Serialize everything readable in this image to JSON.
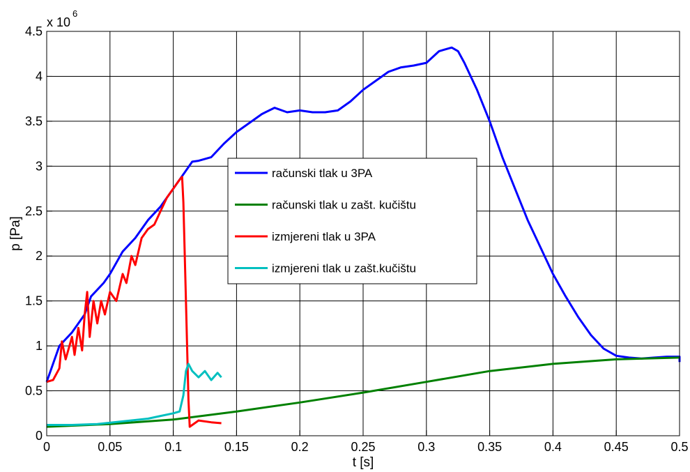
{
  "chart_data": {
    "type": "line",
    "xlabel": "t [s]",
    "ylabel": "p [Pa]",
    "y_exponent_base": "x 10",
    "y_exponent_power": "6",
    "xlim": [
      0,
      0.5
    ],
    "ylim": [
      0,
      4.5
    ],
    "x_ticks": [
      "0",
      "0.05",
      "0.1",
      "0.15",
      "0.2",
      "0.25",
      "0.3",
      "0.35",
      "0.4",
      "0.45",
      "0.5"
    ],
    "y_ticks": [
      "0",
      "0.5",
      "1",
      "1.5",
      "2",
      "2.5",
      "3",
      "3.5",
      "4",
      "4.5"
    ],
    "grid": true,
    "legend_position": "center",
    "series": [
      {
        "name": "računski tlak u 3PA",
        "color": "#0000ff",
        "points": [
          [
            0,
            0.6
          ],
          [
            0.005,
            0.8
          ],
          [
            0.01,
            1.0
          ],
          [
            0.02,
            1.15
          ],
          [
            0.03,
            1.35
          ],
          [
            0.035,
            1.55
          ],
          [
            0.045,
            1.7
          ],
          [
            0.05,
            1.8
          ],
          [
            0.06,
            2.05
          ],
          [
            0.07,
            2.2
          ],
          [
            0.08,
            2.4
          ],
          [
            0.09,
            2.55
          ],
          [
            0.1,
            2.75
          ],
          [
            0.105,
            2.85
          ],
          [
            0.11,
            2.95
          ],
          [
            0.115,
            3.05
          ],
          [
            0.12,
            3.06
          ],
          [
            0.13,
            3.1
          ],
          [
            0.14,
            3.25
          ],
          [
            0.15,
            3.38
          ],
          [
            0.16,
            3.48
          ],
          [
            0.17,
            3.58
          ],
          [
            0.18,
            3.65
          ],
          [
            0.19,
            3.6
          ],
          [
            0.2,
            3.62
          ],
          [
            0.21,
            3.6
          ],
          [
            0.22,
            3.6
          ],
          [
            0.23,
            3.62
          ],
          [
            0.24,
            3.72
          ],
          [
            0.25,
            3.85
          ],
          [
            0.26,
            3.95
          ],
          [
            0.27,
            4.05
          ],
          [
            0.28,
            4.1
          ],
          [
            0.29,
            4.12
          ],
          [
            0.3,
            4.15
          ],
          [
            0.31,
            4.28
          ],
          [
            0.32,
            4.32
          ],
          [
            0.325,
            4.28
          ],
          [
            0.33,
            4.15
          ],
          [
            0.34,
            3.85
          ],
          [
            0.35,
            3.5
          ],
          [
            0.36,
            3.1
          ],
          [
            0.37,
            2.75
          ],
          [
            0.38,
            2.4
          ],
          [
            0.39,
            2.1
          ],
          [
            0.4,
            1.8
          ],
          [
            0.41,
            1.55
          ],
          [
            0.42,
            1.32
          ],
          [
            0.43,
            1.12
          ],
          [
            0.44,
            0.97
          ],
          [
            0.45,
            0.89
          ],
          [
            0.46,
            0.87
          ],
          [
            0.47,
            0.86
          ],
          [
            0.48,
            0.87
          ],
          [
            0.49,
            0.88
          ],
          [
            0.5,
            0.88
          ],
          [
            0.5,
            0.82
          ]
        ]
      },
      {
        "name": "računski tlak u zašt. kučištu",
        "color": "#008000",
        "points": [
          [
            0,
            0.1
          ],
          [
            0.05,
            0.13
          ],
          [
            0.1,
            0.18
          ],
          [
            0.15,
            0.27
          ],
          [
            0.2,
            0.37
          ],
          [
            0.25,
            0.48
          ],
          [
            0.3,
            0.6
          ],
          [
            0.35,
            0.72
          ],
          [
            0.4,
            0.8
          ],
          [
            0.45,
            0.85
          ],
          [
            0.5,
            0.87
          ]
        ]
      },
      {
        "name": "izmjereni tlak u 3PA",
        "color": "#ff0000",
        "points": [
          [
            0,
            0.6
          ],
          [
            0.005,
            0.62
          ],
          [
            0.01,
            0.75
          ],
          [
            0.012,
            1.05
          ],
          [
            0.015,
            0.85
          ],
          [
            0.02,
            1.1
          ],
          [
            0.022,
            0.9
          ],
          [
            0.025,
            1.2
          ],
          [
            0.028,
            0.95
          ],
          [
            0.03,
            1.35
          ],
          [
            0.032,
            1.6
          ],
          [
            0.034,
            1.1
          ],
          [
            0.037,
            1.5
          ],
          [
            0.04,
            1.25
          ],
          [
            0.043,
            1.5
          ],
          [
            0.046,
            1.35
          ],
          [
            0.05,
            1.6
          ],
          [
            0.055,
            1.5
          ],
          [
            0.06,
            1.8
          ],
          [
            0.063,
            1.7
          ],
          [
            0.067,
            2.0
          ],
          [
            0.07,
            1.9
          ],
          [
            0.075,
            2.2
          ],
          [
            0.08,
            2.3
          ],
          [
            0.085,
            2.35
          ],
          [
            0.09,
            2.5
          ],
          [
            0.095,
            2.65
          ],
          [
            0.1,
            2.75
          ],
          [
            0.105,
            2.85
          ],
          [
            0.107,
            2.88
          ],
          [
            0.108,
            2.6
          ],
          [
            0.11,
            1.5
          ],
          [
            0.112,
            0.4
          ],
          [
            0.113,
            0.1
          ],
          [
            0.12,
            0.17
          ],
          [
            0.13,
            0.15
          ],
          [
            0.138,
            0.14
          ]
        ]
      },
      {
        "name": "izmjereni tlak u zašt.kučištu",
        "color": "#00bfbf",
        "points": [
          [
            0,
            0.12
          ],
          [
            0.02,
            0.12
          ],
          [
            0.04,
            0.13
          ],
          [
            0.06,
            0.16
          ],
          [
            0.08,
            0.19
          ],
          [
            0.09,
            0.22
          ],
          [
            0.1,
            0.25
          ],
          [
            0.105,
            0.27
          ],
          [
            0.108,
            0.45
          ],
          [
            0.11,
            0.72
          ],
          [
            0.112,
            0.8
          ],
          [
            0.115,
            0.72
          ],
          [
            0.12,
            0.65
          ],
          [
            0.125,
            0.72
          ],
          [
            0.13,
            0.62
          ],
          [
            0.135,
            0.7
          ],
          [
            0.138,
            0.65
          ]
        ]
      }
    ]
  }
}
